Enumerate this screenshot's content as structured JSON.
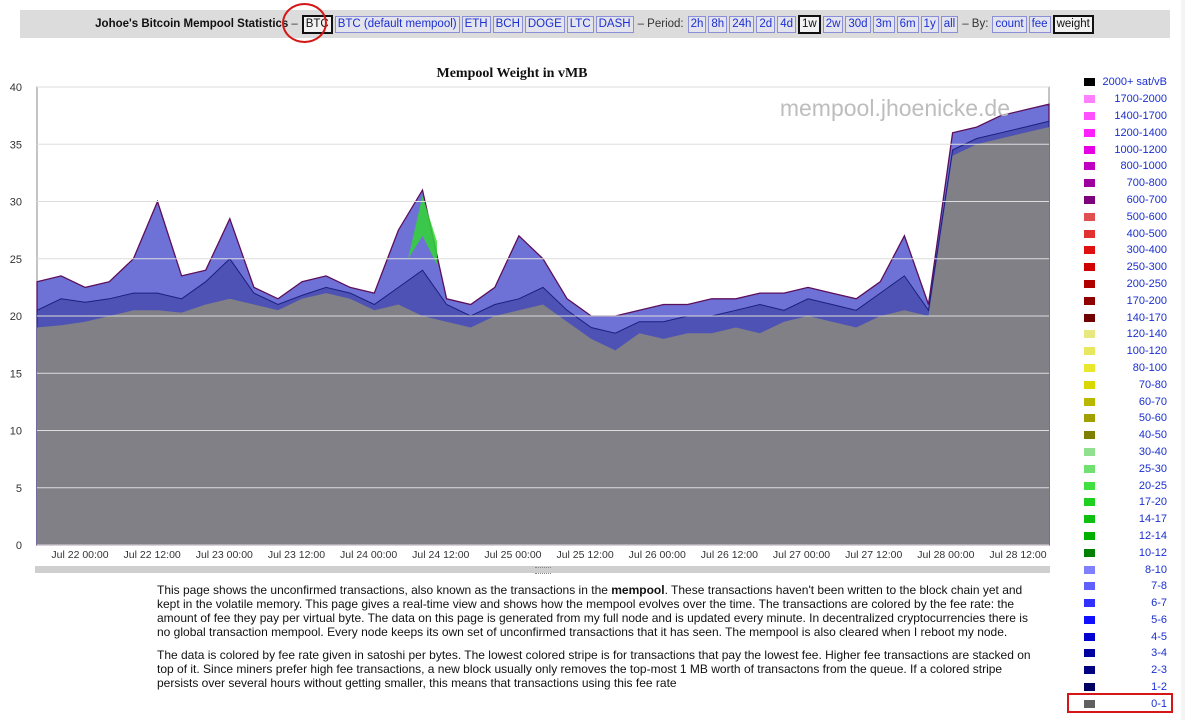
{
  "header": {
    "title": "Johoe's Bitcoin Mempool Statistics",
    "dash": "–",
    "currencies": [
      "BTC",
      "BTC (default mempool)",
      "ETH",
      "BCH",
      "DOGE",
      "LTC",
      "DASH"
    ],
    "selected_currency": "BTC",
    "period_label": "– Period:",
    "periods": [
      "2h",
      "8h",
      "24h",
      "2d",
      "4d",
      "1w",
      "2w",
      "30d",
      "3m",
      "6m",
      "1y",
      "all"
    ],
    "selected_period": "1w",
    "by_label": "– By:",
    "by_options": [
      "count",
      "fee",
      "weight"
    ],
    "selected_by": "weight"
  },
  "chart": {
    "title": "Mempool Weight in vMB",
    "watermark": "mempool.jhoenicke.de"
  },
  "chart_data": {
    "type": "area",
    "title": "Mempool Weight in vMB",
    "ylim": [
      0,
      40
    ],
    "yticks": [
      0,
      5,
      10,
      15,
      20,
      25,
      30,
      35,
      40
    ],
    "xticks": [
      "Jul 22 00:00",
      "Jul 22 12:00",
      "Jul 23 00:00",
      "Jul 23 12:00",
      "Jul 24 00:00",
      "Jul 24 12:00",
      "Jul 25 00:00",
      "Jul 25 12:00",
      "Jul 26 00:00",
      "Jul 26 12:00",
      "Jul 27 00:00",
      "Jul 27 12:00",
      "Jul 28 00:00",
      "Jul 28 12:00"
    ],
    "series": [
      {
        "name": "0-1",
        "color": "#808080",
        "points": [
          [
            0,
            19
          ],
          [
            1,
            19.2
          ],
          [
            2,
            19.5
          ],
          [
            3,
            20.0
          ],
          [
            4,
            20.5
          ],
          [
            5,
            20.5
          ],
          [
            6,
            20.3
          ],
          [
            7,
            21.0
          ],
          [
            8,
            21.5
          ],
          [
            9,
            21.0
          ],
          [
            10,
            20.5
          ],
          [
            11,
            21.5
          ],
          [
            12,
            22.0
          ],
          [
            13,
            21.5
          ],
          [
            14,
            20.5
          ],
          [
            15,
            21.0
          ],
          [
            16,
            20.0
          ],
          [
            17,
            19.5
          ],
          [
            18,
            19.0
          ],
          [
            19,
            20.0
          ],
          [
            20,
            20.5
          ],
          [
            21,
            21.0
          ],
          [
            22,
            19.5
          ],
          [
            23,
            18.0
          ],
          [
            24,
            17.0
          ],
          [
            25,
            18.5
          ],
          [
            26,
            18.0
          ],
          [
            27,
            18.5
          ],
          [
            28,
            18.5
          ],
          [
            29,
            19.0
          ],
          [
            30,
            18.5
          ],
          [
            31,
            19.5
          ],
          [
            32,
            20.0
          ],
          [
            33,
            19.5
          ],
          [
            34,
            19.0
          ],
          [
            35,
            20.0
          ],
          [
            36,
            20.5
          ],
          [
            37,
            20.0
          ],
          [
            38,
            34.0
          ],
          [
            39,
            35.0
          ],
          [
            40,
            35.5
          ],
          [
            41,
            36.0
          ],
          [
            42,
            36.5
          ]
        ]
      },
      {
        "name": "1-2",
        "color": "#1a237e",
        "points": [
          [
            0,
            20.5
          ],
          [
            1,
            21.5
          ],
          [
            2,
            21.2
          ],
          [
            3,
            21.5
          ],
          [
            4,
            22.0
          ],
          [
            5,
            22.0
          ],
          [
            6,
            21.5
          ],
          [
            7,
            23.0
          ],
          [
            8,
            25.0
          ],
          [
            9,
            22.0
          ],
          [
            10,
            21.0
          ],
          [
            11,
            21.8
          ],
          [
            12,
            22.5
          ],
          [
            13,
            22.0
          ],
          [
            14,
            21.0
          ],
          [
            15,
            22.5
          ],
          [
            16,
            24.0
          ],
          [
            17,
            21.0
          ],
          [
            18,
            20.0
          ],
          [
            19,
            21.0
          ],
          [
            20,
            21.5
          ],
          [
            21,
            22.5
          ],
          [
            22,
            20.5
          ],
          [
            23,
            19.0
          ],
          [
            24,
            18.5
          ],
          [
            25,
            19.5
          ],
          [
            26,
            19.5
          ],
          [
            27,
            20.0
          ],
          [
            28,
            20.0
          ],
          [
            29,
            20.5
          ],
          [
            30,
            21.0
          ],
          [
            31,
            20.5
          ],
          [
            32,
            21.5
          ],
          [
            33,
            21.0
          ],
          [
            34,
            20.5
          ],
          [
            35,
            22.0
          ],
          [
            36,
            23.5
          ],
          [
            37,
            20.5
          ],
          [
            38,
            34.5
          ],
          [
            39,
            35.5
          ],
          [
            40,
            36.0
          ],
          [
            41,
            36.5
          ],
          [
            42,
            37.0
          ]
        ]
      },
      {
        "name": "2000+ sat/vB (total)",
        "color": "#000000",
        "points": [
          [
            0,
            23.0
          ],
          [
            1,
            23.5
          ],
          [
            2,
            22.5
          ],
          [
            3,
            23.0
          ],
          [
            4,
            25.0
          ],
          [
            5,
            30.0
          ],
          [
            6,
            23.5
          ],
          [
            7,
            24.0
          ],
          [
            8,
            28.5
          ],
          [
            9,
            22.5
          ],
          [
            10,
            21.5
          ],
          [
            11,
            23.0
          ],
          [
            12,
            23.5
          ],
          [
            13,
            22.5
          ],
          [
            14,
            22.0
          ],
          [
            15,
            27.5
          ],
          [
            16,
            31.0
          ],
          [
            17,
            21.5
          ],
          [
            18,
            21.0
          ],
          [
            19,
            22.5
          ],
          [
            20,
            27.0
          ],
          [
            21,
            25.0
          ],
          [
            22,
            21.5
          ],
          [
            23,
            20.0
          ],
          [
            24,
            20.0
          ],
          [
            25,
            20.5
          ],
          [
            26,
            21.0
          ],
          [
            27,
            21.0
          ],
          [
            28,
            21.5
          ],
          [
            29,
            21.5
          ],
          [
            30,
            22.0
          ],
          [
            31,
            22.0
          ],
          [
            32,
            22.5
          ],
          [
            33,
            22.0
          ],
          [
            34,
            21.5
          ],
          [
            35,
            23.0
          ],
          [
            36,
            27.0
          ],
          [
            37,
            21.0
          ],
          [
            38,
            36.0
          ],
          [
            39,
            36.5
          ],
          [
            40,
            37.5
          ],
          [
            41,
            38.0
          ],
          [
            42,
            38.5
          ]
        ]
      }
    ]
  },
  "legend": [
    {
      "label": "2000+ sat/vB",
      "color": "#000000"
    },
    {
      "label": "1700-2000",
      "color": "#ff80ff"
    },
    {
      "label": "1400-1700",
      "color": "#ff50ff"
    },
    {
      "label": "1200-1400",
      "color": "#ff20ff"
    },
    {
      "label": "1000-1200",
      "color": "#e600e6"
    },
    {
      "label": "800-1000",
      "color": "#c000c0"
    },
    {
      "label": "700-800",
      "color": "#9e009e"
    },
    {
      "label": "600-700",
      "color": "#7d007d"
    },
    {
      "label": "500-600",
      "color": "#e05050"
    },
    {
      "label": "400-500",
      "color": "#e03030"
    },
    {
      "label": "300-400",
      "color": "#e01010"
    },
    {
      "label": "250-300",
      "color": "#d00000"
    },
    {
      "label": "200-250",
      "color": "#b00000"
    },
    {
      "label": "170-200",
      "color": "#900000"
    },
    {
      "label": "140-170",
      "color": "#700000"
    },
    {
      "label": "120-140",
      "color": "#e8e880"
    },
    {
      "label": "100-120",
      "color": "#e8e860"
    },
    {
      "label": "80-100",
      "color": "#e8e830"
    },
    {
      "label": "70-80",
      "color": "#d8d800"
    },
    {
      "label": "60-70",
      "color": "#b8b800"
    },
    {
      "label": "50-60",
      "color": "#a0a000"
    },
    {
      "label": "40-50",
      "color": "#808000"
    },
    {
      "label": "30-40",
      "color": "#90e090"
    },
    {
      "label": "25-30",
      "color": "#70e070"
    },
    {
      "label": "20-25",
      "color": "#40e040"
    },
    {
      "label": "17-20",
      "color": "#20d020"
    },
    {
      "label": "14-17",
      "color": "#10c010"
    },
    {
      "label": "12-14",
      "color": "#00b000"
    },
    {
      "label": "10-12",
      "color": "#008000"
    },
    {
      "label": "8-10",
      "color": "#8080ff"
    },
    {
      "label": "7-8",
      "color": "#6060ff"
    },
    {
      "label": "6-7",
      "color": "#3030ff"
    },
    {
      "label": "5-6",
      "color": "#1010ff"
    },
    {
      "label": "4-5",
      "color": "#0000d0"
    },
    {
      "label": "3-4",
      "color": "#0000a0"
    },
    {
      "label": "2-3",
      "color": "#000080"
    },
    {
      "label": "1-2",
      "color": "#000060"
    },
    {
      "label": "0-1",
      "color": "#606060"
    }
  ],
  "text": {
    "p1_before": "This page shows the unconfirmed transactions, also known as the transactions in the ",
    "p1_bold": "mempool",
    "p1_after": ". These transactions haven't been written to the block chain yet and kept in the volatile memory. This page gives a real-time view and shows how the mempool evolves over the time. The transactions are colored by the fee rate: the amount of fee they pay per virtual byte. The data on this page is generated from my full node and is updated every minute. In decentralized cryptocurrencies there is no global transaction mempool. Every node keeps its own set of unconfirmed transactions that it has seen. The mempool is also cleared when I reboot my node.",
    "p2": "The data is colored by fee rate given in satoshi per bytes. The lowest colored stripe is for transactions that pay the lowest fee. Higher fee transactions are stacked on top of it. Since miners prefer high fee transactions, a new block usually only removes the top-most 1 MB worth of transactons from the queue. If a colored stripe persists over several hours without getting smaller, this means that transactions using this fee rate"
  }
}
